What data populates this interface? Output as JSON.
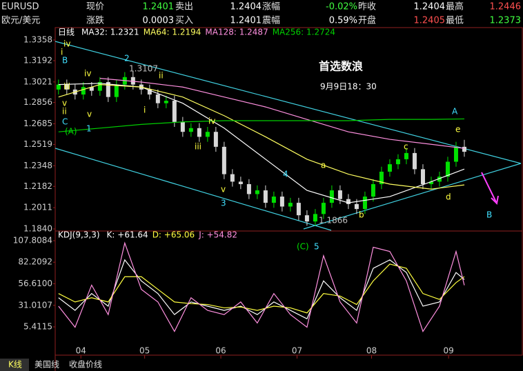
{
  "quote": {
    "rows": [
      [
        "EURUSD",
        "现价",
        "1.2401",
        "卖出",
        "1.2404",
        "涨幅",
        "-0.02%",
        "昨收",
        "1.2404",
        "最高",
        "1.2446"
      ],
      [
        "欧元/美元",
        "涨跌",
        "0.0003",
        "买入",
        "1.2401",
        "震幅",
        "0.59%",
        "开盘",
        "1.2405",
        "最低",
        "1.2373"
      ]
    ]
  },
  "tabs": [
    "K线",
    "美国线",
    "收盘价线"
  ],
  "chart_data": [
    {
      "type": "candlestick",
      "title": "日线",
      "x": [
        0,
        1,
        2,
        3,
        4,
        5,
        6,
        7,
        8,
        9,
        10,
        11,
        12,
        13,
        14,
        15,
        16,
        17,
        18,
        19,
        20,
        21,
        22,
        23,
        24,
        25,
        26,
        27,
        28,
        29,
        30,
        31,
        32,
        33,
        34,
        35,
        36,
        37,
        38,
        39,
        40,
        41,
        42,
        43,
        44,
        45,
        46,
        47,
        48,
        49
      ],
      "open": [
        1.296,
        1.3,
        1.296,
        1.292,
        1.298,
        1.295,
        1.302,
        1.29,
        1.3,
        1.306,
        1.3,
        1.296,
        1.292,
        1.285,
        1.287,
        1.27,
        1.262,
        1.265,
        1.258,
        1.262,
        1.25,
        1.228,
        1.222,
        1.22,
        1.212,
        1.215,
        1.205,
        1.21,
        1.202,
        1.205,
        1.195,
        1.19,
        1.196,
        1.205,
        1.215,
        1.208,
        1.204,
        1.2,
        1.21,
        1.22,
        1.23,
        1.236,
        1.24,
        1.245,
        1.232,
        1.22,
        1.222,
        1.226,
        1.238,
        1.25
      ],
      "high": [
        1.304,
        1.304,
        1.3,
        1.302,
        1.302,
        1.306,
        1.306,
        1.304,
        1.31,
        1.3107,
        1.304,
        1.3,
        1.296,
        1.291,
        1.291,
        1.274,
        1.269,
        1.269,
        1.266,
        1.266,
        1.254,
        1.232,
        1.226,
        1.224,
        1.219,
        1.219,
        1.214,
        1.214,
        1.209,
        1.209,
        1.199,
        1.2,
        1.209,
        1.219,
        1.219,
        1.212,
        1.208,
        1.214,
        1.224,
        1.234,
        1.24,
        1.244,
        1.249,
        1.249,
        1.236,
        1.226,
        1.23,
        1.242,
        1.254,
        1.2556
      ],
      "low": [
        1.292,
        1.292,
        1.288,
        1.288,
        1.291,
        1.291,
        1.286,
        1.286,
        1.296,
        1.296,
        1.292,
        1.288,
        1.281,
        1.281,
        1.266,
        1.258,
        1.258,
        1.254,
        1.254,
        1.246,
        1.224,
        1.218,
        1.216,
        1.208,
        1.208,
        1.201,
        1.201,
        1.198,
        1.198,
        1.191,
        1.1866,
        1.1866,
        1.192,
        1.201,
        1.204,
        1.2,
        1.196,
        1.196,
        1.206,
        1.216,
        1.226,
        1.232,
        1.236,
        1.228,
        1.216,
        1.216,
        1.218,
        1.222,
        1.234,
        1.242
      ],
      "close": [
        1.3,
        1.296,
        1.292,
        1.298,
        1.295,
        1.302,
        1.29,
        1.3,
        1.306,
        1.3,
        1.296,
        1.292,
        1.285,
        1.287,
        1.27,
        1.262,
        1.265,
        1.258,
        1.262,
        1.25,
        1.228,
        1.222,
        1.22,
        1.212,
        1.215,
        1.205,
        1.21,
        1.202,
        1.205,
        1.195,
        1.19,
        1.196,
        1.205,
        1.215,
        1.208,
        1.204,
        1.2,
        1.21,
        1.22,
        1.23,
        1.236,
        1.24,
        1.245,
        1.232,
        1.22,
        1.222,
        1.226,
        1.238,
        1.25,
        1.246
      ],
      "up_color": "#00e000",
      "down_color": "#d8d8d8",
      "series": [
        {
          "name": "MA32: 1.2321",
          "color": "#ffffff",
          "x": [
            0,
            5,
            10,
            15,
            20,
            25,
            30,
            35,
            40,
            45,
            49
          ],
          "values": [
            1.3,
            1.301,
            1.298,
            1.285,
            1.265,
            1.24,
            1.215,
            1.205,
            1.21,
            1.222,
            1.2321
          ]
        },
        {
          "name": "MA64: 1.2194",
          "color": "#ffff60",
          "x": [
            0,
            5,
            10,
            15,
            20,
            25,
            30,
            35,
            40,
            45,
            49
          ],
          "values": [
            1.29,
            1.3,
            1.298,
            1.29,
            1.275,
            1.258,
            1.24,
            1.228,
            1.22,
            1.216,
            1.2194
          ]
        },
        {
          "name": "MA128: 1.2487",
          "color": "#ff90e0",
          "x": [
            5,
            10,
            15,
            20,
            25,
            30,
            35,
            40,
            45,
            49
          ],
          "values": [
            1.305,
            1.302,
            1.298,
            1.29,
            1.282,
            1.272,
            1.262,
            1.256,
            1.252,
            1.2487
          ]
        },
        {
          "name": "MA256: 1.2724",
          "color": "#00d000",
          "x": [
            0,
            5,
            10,
            15,
            20,
            25,
            30,
            35,
            40,
            45,
            49
          ],
          "values": [
            1.262,
            1.265,
            1.268,
            1.27,
            1.271,
            1.271,
            1.271,
            1.271,
            1.272,
            1.272,
            1.2724
          ]
        }
      ],
      "xlim": [
        -0.4,
        55.75
      ],
      "xticks": [
        {
          "value": 2.7,
          "label": "04"
        },
        {
          "value": 10.4,
          "label": "05"
        },
        {
          "value": 19.6,
          "label": "06"
        },
        {
          "value": 28.8,
          "label": "07"
        },
        {
          "value": 37.8,
          "label": "08"
        },
        {
          "value": 47.1,
          "label": "09"
        }
      ],
      "ylim": [
        1.184,
        1.3358
      ],
      "yticks": [
        1.3358,
        1.3192,
        1.3021,
        1.2856,
        1.2685,
        1.2519,
        1.2348,
        1.2182,
        1.2011,
        {
          "value": 1.184,
          "label": "1.1840"
        }
      ],
      "annotations": [
        "iv",
        "i",
        "B",
        "iv",
        "iii",
        "v",
        "ii",
        "C",
        "(A)",
        "1",
        "v",
        "2",
        "1.3107",
        "ii",
        "i",
        "iv",
        "iii",
        "v",
        "3",
        "4",
        "1.1866",
        "a",
        "b",
        "c",
        "A",
        "e",
        "d",
        "B",
        "首选数浪",
        "9月9日18：30"
      ]
    },
    {
      "type": "line",
      "title": "KDJ(9,3,3)",
      "series": [
        {
          "name": "K: +61.64",
          "color": "#ffffff",
          "x": [
            0,
            2,
            4,
            6,
            8,
            10,
            12,
            14,
            16,
            18,
            20,
            22,
            24,
            26,
            28,
            30,
            32,
            34,
            36,
            38,
            40,
            42,
            44,
            46,
            48,
            49
          ],
          "values": [
            40,
            25,
            45,
            30,
            85,
            60,
            45,
            20,
            35,
            30,
            25,
            30,
            20,
            35,
            25,
            15,
            60,
            40,
            25,
            75,
            85,
            70,
            30,
            35,
            70,
            61.64
          ]
        },
        {
          "name": "D: +65.06",
          "color": "#ffff40",
          "x": [
            0,
            2,
            4,
            6,
            8,
            10,
            12,
            14,
            16,
            18,
            20,
            22,
            24,
            26,
            28,
            30,
            32,
            34,
            36,
            38,
            40,
            42,
            44,
            46,
            48,
            49
          ],
          "values": [
            45,
            35,
            40,
            35,
            65,
            65,
            50,
            35,
            33,
            32,
            28,
            29,
            25,
            30,
            28,
            22,
            45,
            42,
            32,
            60,
            80,
            75,
            45,
            38,
            58,
            65.06
          ]
        },
        {
          "name": "J: +54.82",
          "color": "#ff90e0",
          "x": [
            0,
            2,
            4,
            6,
            8,
            10,
            12,
            14,
            16,
            18,
            20,
            22,
            24,
            26,
            28,
            30,
            32,
            34,
            36,
            38,
            40,
            42,
            44,
            46,
            48,
            49
          ],
          "values": [
            30,
            5,
            55,
            20,
            105,
            50,
            35,
            0,
            40,
            25,
            20,
            35,
            10,
            45,
            20,
            5,
            90,
            35,
            10,
            100,
            95,
            60,
            0,
            30,
            95,
            54.82
          ]
        }
      ],
      "xlim": [
        -0.4,
        55.75
      ],
      "ylim": [
        5.4115,
        107.8084
      ],
      "yticks": [
        107.8084,
        82.2092,
        {
          "value": 56.61,
          "label": "56.6100"
        },
        31.0107,
        5.4115
      ],
      "annotations": [
        "(C)",
        "5"
      ]
    }
  ]
}
